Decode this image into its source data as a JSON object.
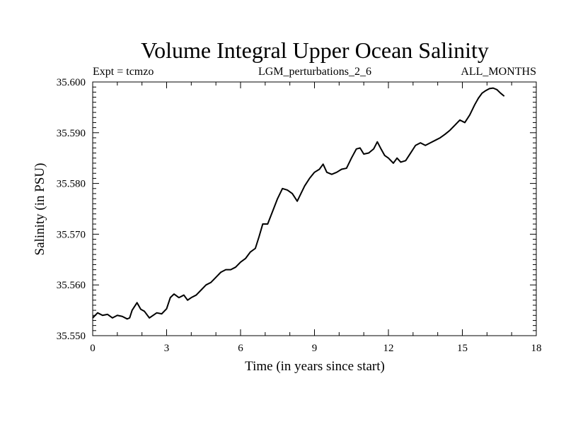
{
  "chart_data": {
    "type": "line",
    "title": "Volume Integral Upper Ocean Salinity",
    "subtitle_left": "Expt = tcmzo",
    "subtitle_center": "LGM_perturbations_2_6",
    "subtitle_right": "ALL_MONTHS",
    "xlabel": "Time (in years since start)",
    "ylabel": "Salinity (in PSU)",
    "xlim": [
      0,
      18
    ],
    "ylim": [
      35.55,
      35.6
    ],
    "xticks": [
      0,
      3,
      6,
      9,
      12,
      15,
      18
    ],
    "xtick_labels": [
      "0",
      "3",
      "6",
      "9",
      "12",
      "15",
      "18"
    ],
    "yticks": [
      35.55,
      35.56,
      35.57,
      35.58,
      35.59,
      35.6
    ],
    "ytick_labels": [
      "35.550",
      "35.560",
      "35.570",
      "35.580",
      "35.590",
      "35.600"
    ],
    "grid": false,
    "series": [
      {
        "name": "Salinity",
        "color": "#000000",
        "x": [
          0.0,
          0.2,
          0.4,
          0.6,
          0.8,
          1.0,
          1.2,
          1.4,
          1.5,
          1.6,
          1.8,
          1.95,
          2.1,
          2.3,
          2.45,
          2.6,
          2.8,
          3.0,
          3.15,
          3.3,
          3.5,
          3.7,
          3.85,
          4.0,
          4.2,
          4.4,
          4.6,
          4.8,
          5.0,
          5.2,
          5.4,
          5.6,
          5.8,
          6.0,
          6.2,
          6.4,
          6.6,
          6.75,
          6.9,
          7.1,
          7.3,
          7.5,
          7.7,
          7.9,
          8.1,
          8.3,
          8.45,
          8.6,
          8.8,
          9.0,
          9.2,
          9.35,
          9.5,
          9.7,
          9.9,
          10.1,
          10.3,
          10.5,
          10.7,
          10.85,
          11.0,
          11.2,
          11.4,
          11.55,
          11.7,
          11.85,
          12.0,
          12.2,
          12.35,
          12.5,
          12.7,
          12.9,
          13.1,
          13.3,
          13.5,
          13.7,
          13.9,
          14.1,
          14.3,
          14.5,
          14.7,
          14.9,
          15.1,
          15.3,
          15.5,
          15.65,
          15.8,
          15.95,
          16.1,
          16.25,
          16.4,
          16.55,
          16.7
        ],
        "values": [
          35.5535,
          35.5545,
          35.554,
          35.5542,
          35.5535,
          35.554,
          35.5538,
          35.5533,
          35.5535,
          35.555,
          35.5565,
          35.5552,
          35.5548,
          35.5535,
          35.554,
          35.5545,
          35.5543,
          35.5553,
          35.5575,
          35.5582,
          35.5575,
          35.558,
          35.557,
          35.5575,
          35.558,
          35.559,
          35.56,
          35.5605,
          35.5615,
          35.5625,
          35.563,
          35.563,
          35.5635,
          35.5645,
          35.5652,
          35.5665,
          35.5672,
          35.5695,
          35.572,
          35.572,
          35.5745,
          35.577,
          35.579,
          35.5787,
          35.578,
          35.5765,
          35.578,
          35.5795,
          35.581,
          35.5822,
          35.5828,
          35.5838,
          35.5822,
          35.5818,
          35.5822,
          35.5828,
          35.583,
          35.585,
          35.5868,
          35.587,
          35.5858,
          35.586,
          35.5868,
          35.5882,
          35.5868,
          35.5855,
          35.585,
          35.584,
          35.585,
          35.5842,
          35.5845,
          35.586,
          35.5875,
          35.588,
          35.5875,
          35.588,
          35.5885,
          35.589,
          35.5897,
          35.5905,
          35.5915,
          35.5925,
          35.592,
          35.5935,
          35.5955,
          35.5968,
          35.5978,
          35.5983,
          35.5987,
          35.5988,
          35.5985,
          35.5978,
          35.5972
        ]
      }
    ]
  }
}
